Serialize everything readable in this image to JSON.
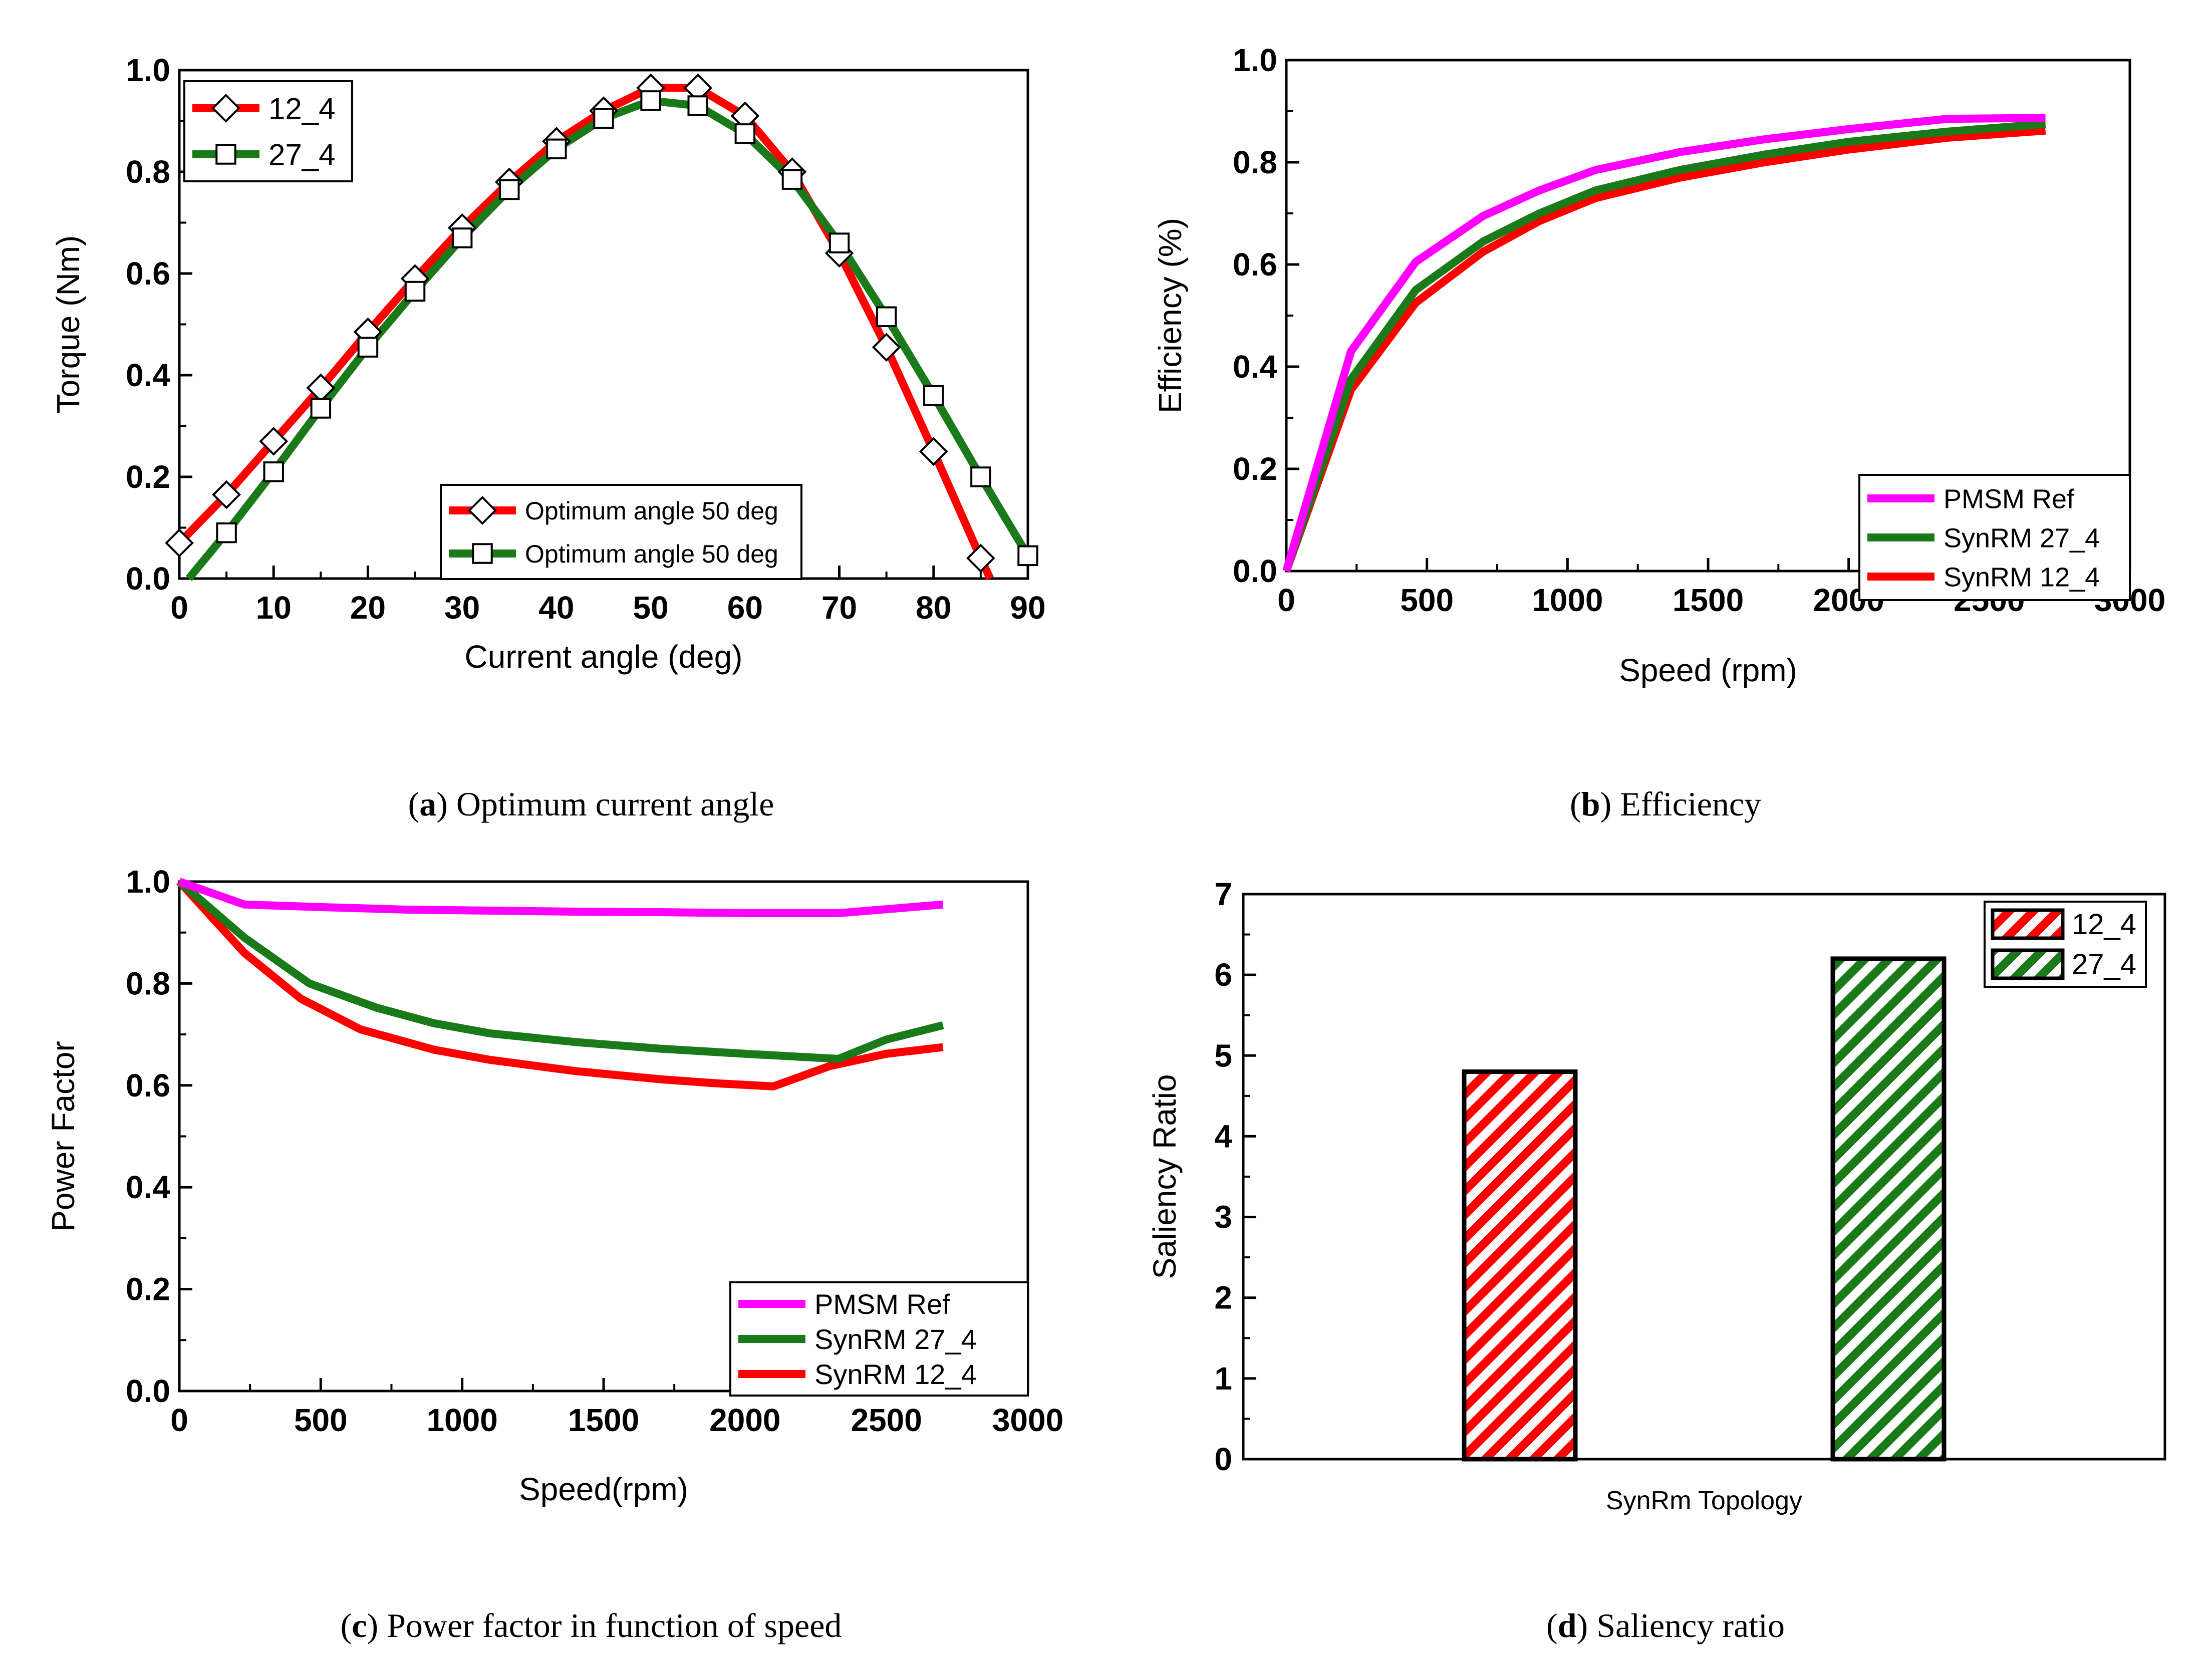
{
  "colors": {
    "pmsm": "#ff00ff",
    "green": "#1a7a1a",
    "red": "#ff0000",
    "axis": "#000000"
  },
  "panels": [
    {
      "id": "a",
      "caption_letter": "a",
      "caption_text": "Optimum current angle",
      "chart_data": {
        "type": "line",
        "xlabel": "Current angle (deg)",
        "ylabel": "Torque (Nm)",
        "xlim": [
          0,
          90
        ],
        "ylim": [
          0.0,
          1.0
        ],
        "xticks": [
          0,
          10,
          20,
          30,
          40,
          50,
          60,
          70,
          80,
          90
        ],
        "xtick_labels": [
          "0",
          "10",
          "20",
          "30",
          "40",
          "50",
          "60",
          "70",
          "80",
          "90"
        ],
        "yticks": [
          0.0,
          0.2,
          0.4,
          0.6,
          0.8,
          1.0
        ],
        "ytick_labels": [
          "0.0",
          "0.2",
          "0.4",
          "0.6",
          "0.8",
          "1.0"
        ],
        "legend_placement": "top-left",
        "legend2_placement": "bottom-center",
        "legend2_entries": [
          "Optimum angle 50 deg",
          "Optimum angle 50 deg"
        ],
        "series": [
          {
            "name": "12_4",
            "color": "red",
            "marker": "diamond",
            "x": [
              0,
              5,
              10,
              15,
              20,
              25,
              30,
              35,
              40,
              45,
              50,
              55,
              60,
              65,
              70,
              75,
              80,
              85,
              86
            ],
            "y": [
              0.07,
              0.165,
              0.27,
              0.375,
              0.485,
              0.59,
              0.69,
              0.78,
              0.86,
              0.92,
              0.965,
              0.965,
              0.91,
              0.8,
              0.64,
              0.455,
              0.25,
              0.04,
              0.0
            ]
          },
          {
            "name": "27_4",
            "color": "green",
            "marker": "square",
            "x": [
              1,
              5,
              10,
              15,
              20,
              25,
              30,
              35,
              40,
              45,
              50,
              55,
              60,
              65,
              70,
              75,
              80,
              85,
              90
            ],
            "y": [
              0.0,
              0.09,
              0.21,
              0.335,
              0.455,
              0.565,
              0.67,
              0.765,
              0.845,
              0.905,
              0.94,
              0.93,
              0.875,
              0.785,
              0.66,
              0.515,
              0.36,
              0.2,
              0.045
            ]
          }
        ]
      }
    },
    {
      "id": "b",
      "caption_letter": "b",
      "caption_text": "Efficiency",
      "chart_data": {
        "type": "line",
        "xlabel": "Speed (rpm)",
        "ylabel": "Efficiency (%)",
        "xlim": [
          0,
          3000
        ],
        "ylim": [
          0.0,
          1.0
        ],
        "xticks": [
          0,
          500,
          1000,
          1500,
          2000,
          2500,
          3000
        ],
        "xtick_labels": [
          "0",
          "500",
          "1000",
          "1500",
          "2000",
          "2500",
          "3000"
        ],
        "yticks": [
          0.0,
          0.2,
          0.4,
          0.6,
          0.8,
          1.0
        ],
        "ytick_labels": [
          "0.0",
          "0.2",
          "0.4",
          "0.6",
          "0.8",
          "1.0"
        ],
        "legend_placement": "bottom-right",
        "series": [
          {
            "name": "PMSM Ref",
            "color": "pmsm",
            "x": [
              0,
              230,
              460,
              700,
              900,
              1100,
              1400,
              1700,
              2000,
              2350,
              2700
            ],
            "y": [
              0.0,
              0.43,
              0.605,
              0.695,
              0.745,
              0.785,
              0.82,
              0.845,
              0.865,
              0.885,
              0.887
            ]
          },
          {
            "name": "SynRM 27_4",
            "color": "green",
            "x": [
              0,
              230,
              460,
              700,
              900,
              1100,
              1400,
              1700,
              2000,
              2350,
              2700
            ],
            "y": [
              0.0,
              0.375,
              0.55,
              0.645,
              0.7,
              0.745,
              0.785,
              0.815,
              0.84,
              0.86,
              0.875
            ]
          },
          {
            "name": "SynRM 12_4",
            "color": "red",
            "x": [
              0,
              230,
              460,
              700,
              900,
              1100,
              1400,
              1700,
              2000,
              2350,
              2700
            ],
            "y": [
              0.0,
              0.355,
              0.525,
              0.625,
              0.685,
              0.73,
              0.77,
              0.8,
              0.825,
              0.848,
              0.862
            ]
          }
        ]
      }
    },
    {
      "id": "c",
      "caption_letter": "c",
      "caption_text": "Power factor in function of speed",
      "chart_data": {
        "type": "line",
        "xlabel": "Speed(rpm)",
        "ylabel": "Power Factor",
        "xlim": [
          0,
          3000
        ],
        "ylim": [
          0.0,
          1.0
        ],
        "xticks": [
          0,
          500,
          1000,
          1500,
          2000,
          2500,
          3000
        ],
        "xtick_labels": [
          "0",
          "500",
          "1000",
          "1500",
          "2000",
          "2500",
          "3000"
        ],
        "yticks": [
          0.0,
          0.2,
          0.4,
          0.6,
          0.8,
          1.0
        ],
        "ytick_labels": [
          "0.0",
          "0.2",
          "0.4",
          "0.6",
          "0.8",
          "1.0"
        ],
        "legend_placement": "bottom-right",
        "series": [
          {
            "name": "PMSM Ref",
            "color": "pmsm",
            "x": [
              0,
              230,
              500,
              800,
              1100,
              1400,
              1700,
              2000,
              2330,
              2700
            ],
            "y": [
              1.0,
              0.955,
              0.95,
              0.945,
              0.943,
              0.941,
              0.94,
              0.938,
              0.938,
              0.955
            ]
          },
          {
            "name": "SynRM 27_4",
            "color": "green",
            "x": [
              0,
              230,
              460,
              700,
              900,
              1100,
              1400,
              1700,
              2000,
              2330,
              2500,
              2700
            ],
            "y": [
              1.0,
              0.89,
              0.8,
              0.752,
              0.722,
              0.702,
              0.685,
              0.672,
              0.662,
              0.652,
              0.69,
              0.718
            ]
          },
          {
            "name": "SynRM 12_4",
            "color": "red",
            "x": [
              0,
              230,
              430,
              640,
              900,
              1100,
              1400,
              1700,
              1900,
              2100,
              2300,
              2500,
              2700
            ],
            "y": [
              1.0,
              0.86,
              0.77,
              0.71,
              0.67,
              0.65,
              0.628,
              0.612,
              0.604,
              0.598,
              0.638,
              0.662,
              0.675
            ]
          }
        ]
      }
    },
    {
      "id": "d",
      "caption_letter": "d",
      "caption_text": "Saliency ratio",
      "chart_data": {
        "type": "bar",
        "xlabel": "SynRm Topology",
        "ylabel": "Saliency Ratio",
        "ylim": [
          0,
          7
        ],
        "yticks": [
          0,
          1,
          2,
          3,
          4,
          5,
          6,
          7
        ],
        "ytick_labels": [
          "0",
          "1",
          "2",
          "3",
          "4",
          "5",
          "6",
          "7"
        ],
        "legend_placement": "top-right",
        "series": [
          {
            "name": "12_4",
            "color": "red",
            "value": 4.8
          },
          {
            "name": "27_4",
            "color": "green",
            "value": 6.2
          }
        ]
      }
    }
  ]
}
